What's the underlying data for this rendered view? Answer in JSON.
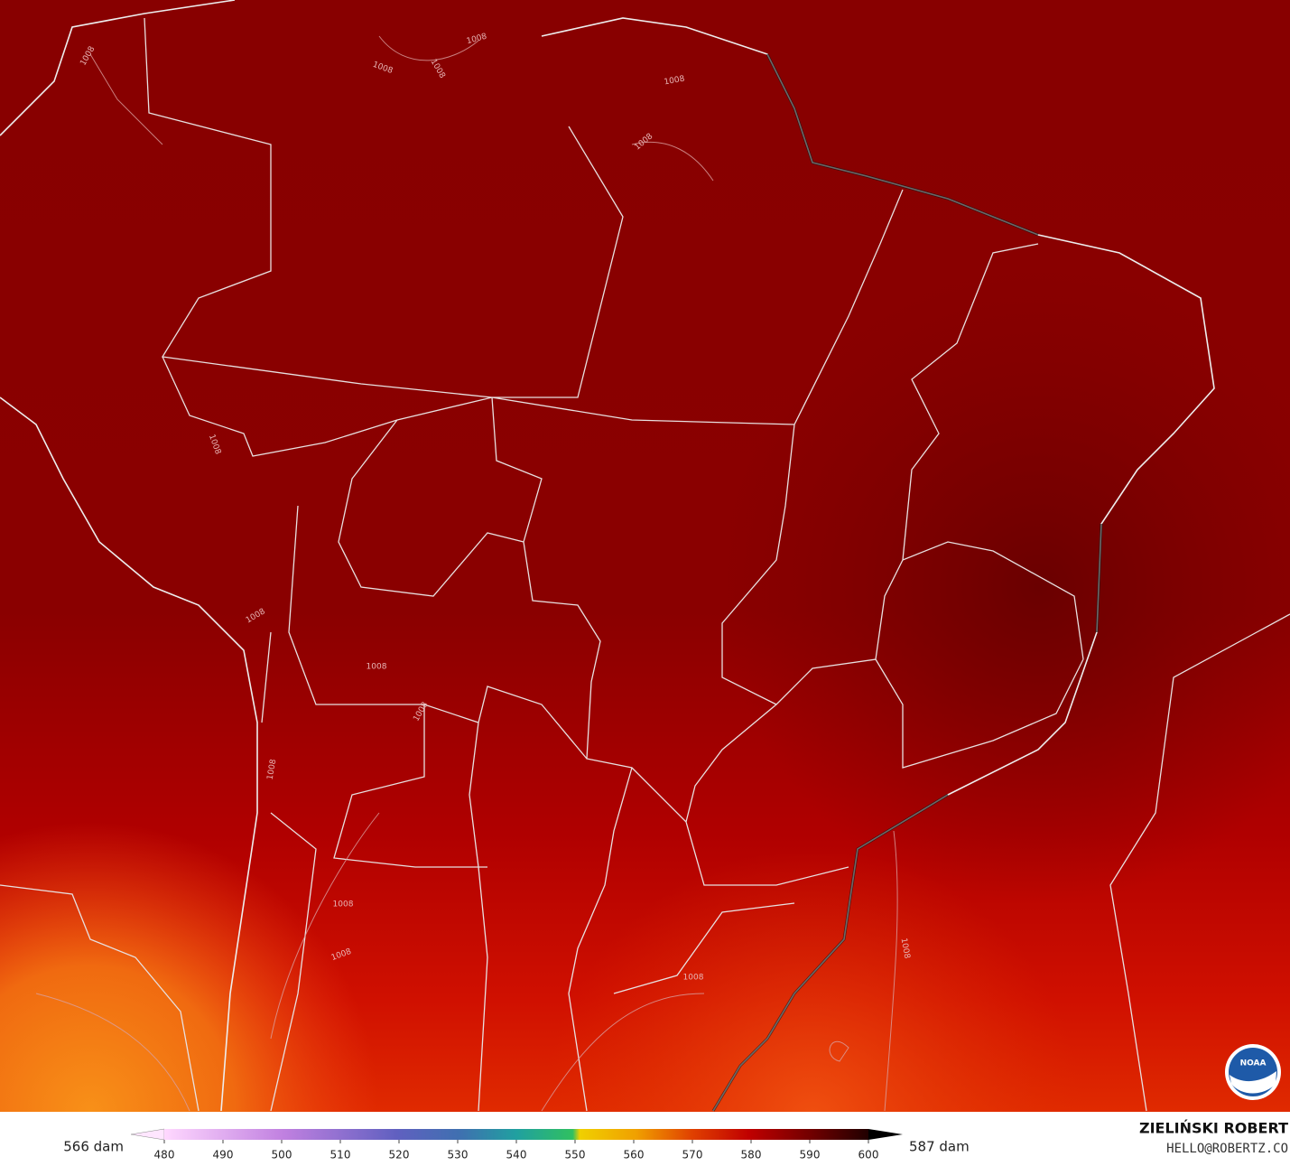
{
  "map": {
    "contour_labels": [
      "1008",
      "1008",
      "1008",
      "1008",
      "1008",
      "1008",
      "1008",
      "1008",
      "1008",
      "1008",
      "1008",
      "1008",
      "1008",
      "1008",
      "1008"
    ]
  },
  "colorbar": {
    "min_label": "566 dam",
    "max_label": "587 dam",
    "ticks": [
      480,
      490,
      500,
      510,
      520,
      530,
      540,
      550,
      560,
      570,
      580,
      590,
      600
    ]
  },
  "credits": {
    "author": "ZIELIŃSKI ROBERT",
    "email": "HELLO@ROBERTZ.CO",
    "logo": "NOAA"
  }
}
